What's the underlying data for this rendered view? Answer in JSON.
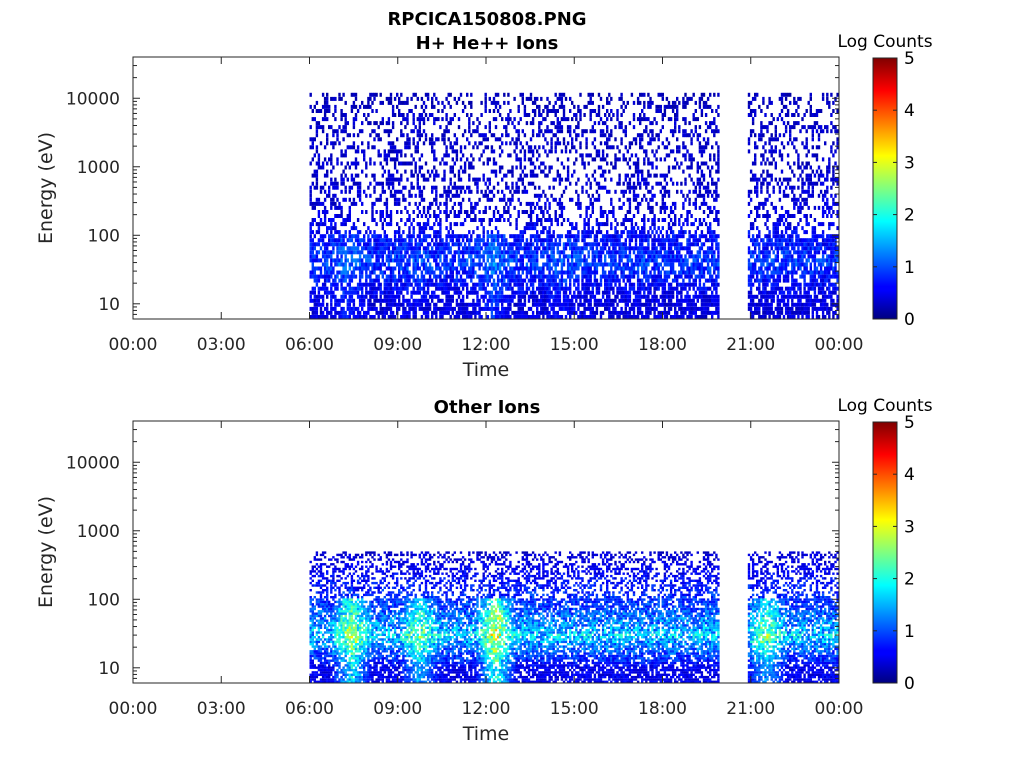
{
  "figure": {
    "main_title": "RPCICA150808.PNG"
  },
  "chart_data": [
    {
      "type": "heatmap",
      "title": "H+ He++ Ions",
      "xlabel": "Time",
      "ylabel": "Energy (eV)",
      "x_tick_labels": [
        "00:00",
        "03:00",
        "06:00",
        "09:00",
        "12:00",
        "15:00",
        "18:00",
        "21:00",
        "00:00"
      ],
      "x_ticks_hours": [
        0,
        3,
        6,
        9,
        12,
        15,
        18,
        21,
        24
      ],
      "xlim_hours": [
        0,
        24
      ],
      "y_scale": "log",
      "y_tick_labels": [
        "10",
        "100",
        "1000",
        "10000"
      ],
      "y_ticks": [
        10,
        100,
        1000,
        10000
      ],
      "ylim": [
        6,
        40000
      ],
      "colorbar": {
        "label": "Log Counts",
        "range": [
          0,
          5
        ],
        "tick_labels": [
          "0",
          "1",
          "2",
          "3",
          "4",
          "5"
        ],
        "colormap": "jet"
      },
      "data_intervals_hours": [
        [
          6.0,
          19.9
        ],
        [
          20.9,
          23.95
        ]
      ],
      "log_counts_profile": [
        {
          "energy": 10,
          "log_counts": 0.5
        },
        {
          "energy": 20,
          "log_counts": 0.7
        },
        {
          "energy": 40,
          "log_counts": 1.0
        },
        {
          "energy": 70,
          "log_counts": 0.8
        },
        {
          "energy": 200,
          "log_counts": 0.5
        },
        {
          "energy": 1000,
          "log_counts": 0.4
        },
        {
          "energy": 5000,
          "log_counts": 0.4
        },
        {
          "energy": 12000,
          "log_counts": 0.3
        }
      ],
      "enhanced_bursts": [
        {
          "hour": 7.3,
          "log_counts": 1.3
        },
        {
          "hour": 9.6,
          "log_counts": 1.1
        },
        {
          "hour": 12.2,
          "log_counts": 1.4
        },
        {
          "hour": 14.5,
          "log_counts": 1.2
        }
      ]
    },
    {
      "type": "heatmap",
      "title": "Other Ions",
      "xlabel": "Time",
      "ylabel": "Energy (eV)",
      "x_tick_labels": [
        "00:00",
        "03:00",
        "06:00",
        "09:00",
        "12:00",
        "15:00",
        "18:00",
        "21:00",
        "00:00"
      ],
      "x_ticks_hours": [
        0,
        3,
        6,
        9,
        12,
        15,
        18,
        21,
        24
      ],
      "xlim_hours": [
        0,
        24
      ],
      "y_scale": "log",
      "y_tick_labels": [
        "10",
        "100",
        "1000",
        "10000"
      ],
      "y_ticks": [
        10,
        100,
        1000,
        10000
      ],
      "ylim": [
        6,
        40000
      ],
      "colorbar": {
        "label": "Log Counts",
        "range": [
          0,
          5
        ],
        "tick_labels": [
          "0",
          "1",
          "2",
          "3",
          "4",
          "5"
        ],
        "colormap": "jet"
      },
      "data_intervals_hours": [
        [
          6.0,
          19.9
        ],
        [
          20.9,
          23.95
        ]
      ],
      "log_counts_profile": [
        {
          "energy": 10,
          "log_counts": 0.6
        },
        {
          "energy": 20,
          "log_counts": 1.3
        },
        {
          "energy": 30,
          "log_counts": 1.8
        },
        {
          "energy": 40,
          "log_counts": 1.5
        },
        {
          "energy": 80,
          "log_counts": 1.0
        },
        {
          "energy": 200,
          "log_counts": 0.7
        },
        {
          "energy": 500,
          "log_counts": 0.4
        }
      ],
      "enhanced_bursts": [
        {
          "hour": 7.4,
          "log_counts": 2.3
        },
        {
          "hour": 9.7,
          "log_counts": 2.0
        },
        {
          "hour": 12.3,
          "log_counts": 2.6
        },
        {
          "hour": 21.5,
          "log_counts": 2.0
        }
      ]
    }
  ]
}
